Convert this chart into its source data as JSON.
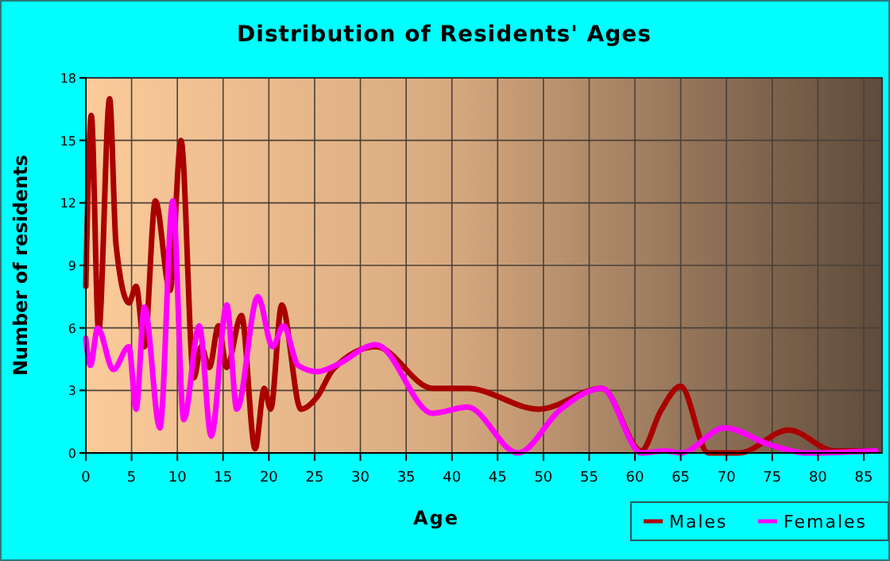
{
  "chart_data": {
    "type": "line",
    "title": "Distribution of Residents' Ages",
    "xlabel": "Age",
    "ylabel": "Number of residents",
    "xlim": [
      0,
      87
    ],
    "xticks": [
      0,
      5,
      10,
      15,
      20,
      25,
      30,
      35,
      40,
      45,
      50,
      55,
      60,
      65,
      70,
      75,
      80,
      85
    ],
    "ylim": [
      0,
      18
    ],
    "yticks": [
      0,
      3,
      6,
      9,
      12,
      15,
      18
    ],
    "grid": true,
    "legend": "bottom right",
    "marker": "none",
    "line_style": "solid",
    "series": [
      {
        "name": "Males",
        "color": "#aa0000",
        "x": [
          0,
          0.6,
          1.4,
          2.6,
          3.3,
          4.7,
          5.5,
          6.4,
          7.6,
          9.2,
          10.4,
          11.8,
          12.6,
          13.5,
          14.5,
          15.4,
          17,
          18.5,
          19.5,
          20.2,
          21.4,
          23.5,
          25.3,
          27,
          31.7,
          37.9,
          41.7,
          49.5,
          56.4,
          60.7,
          62.8,
          65,
          68,
          71.4,
          76.8,
          81.8,
          86.3
        ],
        "values": [
          8,
          16.2,
          5.8,
          17,
          10,
          7.2,
          8,
          5.1,
          12.1,
          7.8,
          15,
          3.6,
          5.1,
          4.1,
          6.1,
          4.1,
          6.6,
          0.2,
          3.1,
          2.1,
          7.1,
          2.1,
          2.7,
          4,
          5.1,
          3.1,
          3.1,
          2.1,
          3.1,
          0.1,
          2,
          3.2,
          0,
          0,
          1.1,
          0.1,
          0.1
        ]
      },
      {
        "name": "Females",
        "color": "#ff00ff",
        "x": [
          0,
          0.5,
          1.3,
          3,
          4.7,
          5.5,
          6.4,
          8.1,
          9.5,
          10.7,
          12.4,
          13.7,
          15.4,
          16.5,
          18.8,
          20.4,
          21.6,
          23.2,
          25.3,
          27.3,
          31.7,
          37.9,
          41.7,
          47.2,
          51.9,
          56.4,
          60.7,
          63.3,
          65,
          69.8,
          74.7,
          78.7,
          86.3
        ],
        "values": [
          5.5,
          4.2,
          6,
          4,
          5.1,
          2.1,
          7,
          1.2,
          12.1,
          1.6,
          6.1,
          0.8,
          7.1,
          2.1,
          7.5,
          5.1,
          6.1,
          4.2,
          3.9,
          4.2,
          5.2,
          1.9,
          2.2,
          0,
          2.1,
          3.1,
          0,
          0.1,
          0,
          1.2,
          0.4,
          0,
          0.1
        ]
      }
    ]
  }
}
